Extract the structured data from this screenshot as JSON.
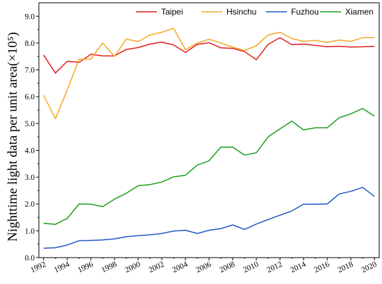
{
  "chart_data": {
    "type": "line",
    "title": "",
    "xlabel": "",
    "ylabel": "Nighttime light data per unit area(×10⁵)",
    "x": [
      1992,
      1993,
      1994,
      1995,
      1996,
      1997,
      1998,
      1999,
      2000,
      2001,
      2002,
      2003,
      2004,
      2005,
      2006,
      2007,
      2008,
      2009,
      2010,
      2011,
      2012,
      2013,
      2014,
      2015,
      2016,
      2017,
      2018,
      2019,
      2020
    ],
    "xticks": [
      "1992",
      "1994",
      "1996",
      "1998",
      "2000",
      "2002",
      "2004",
      "2006",
      "2008",
      "2010",
      "2012",
      "2014",
      "2016",
      "2018",
      "2020"
    ],
    "yticks": [
      "0.0",
      "1.0",
      "2.0",
      "3.0",
      "4.0",
      "5.0",
      "6.0",
      "7.0",
      "8.0",
      "9.0"
    ],
    "xlim": [
      1991.6,
      2020.4
    ],
    "ylim": [
      0,
      9.5
    ],
    "grid": false,
    "legend_position": "top-right",
    "series": [
      {
        "name": "Taipei",
        "color": "#e41a1c",
        "values": [
          7.55,
          6.88,
          7.32,
          7.28,
          7.58,
          7.52,
          7.52,
          7.76,
          7.83,
          7.96,
          8.03,
          7.93,
          7.65,
          7.95,
          8.01,
          7.82,
          7.8,
          7.68,
          7.38,
          7.95,
          8.2,
          7.94,
          7.96,
          7.91,
          7.86,
          7.88,
          7.85,
          7.86,
          7.88
        ]
      },
      {
        "name": "Hsinchu",
        "color": "#f5a623",
        "values": [
          6.05,
          5.18,
          6.25,
          7.4,
          7.4,
          8.0,
          7.5,
          8.15,
          8.05,
          8.3,
          8.4,
          8.55,
          7.75,
          8.0,
          8.14,
          8.0,
          7.85,
          7.72,
          7.9,
          8.3,
          8.4,
          8.17,
          8.06,
          8.1,
          8.02,
          8.11,
          8.06,
          8.2,
          8.2
        ]
      },
      {
        "name": "Fuzhou",
        "color": "#2255c4",
        "values": [
          0.35,
          0.37,
          0.47,
          0.63,
          0.64,
          0.66,
          0.7,
          0.78,
          0.82,
          0.85,
          0.9,
          0.99,
          1.02,
          0.9,
          1.02,
          1.08,
          1.22,
          1.05,
          1.25,
          1.42,
          1.58,
          1.74,
          1.99,
          1.99,
          2.0,
          2.37,
          2.47,
          2.62,
          2.28
        ]
      },
      {
        "name": "Xiamen",
        "color": "#1a9e1a",
        "values": [
          1.28,
          1.24,
          1.46,
          2.0,
          1.99,
          1.9,
          2.18,
          2.4,
          2.68,
          2.72,
          2.82,
          3.01,
          3.07,
          3.45,
          3.61,
          4.12,
          4.12,
          3.82,
          3.91,
          4.5,
          4.8,
          5.09,
          4.76,
          4.84,
          4.84,
          5.21,
          5.36,
          5.56,
          5.27
        ]
      }
    ]
  }
}
